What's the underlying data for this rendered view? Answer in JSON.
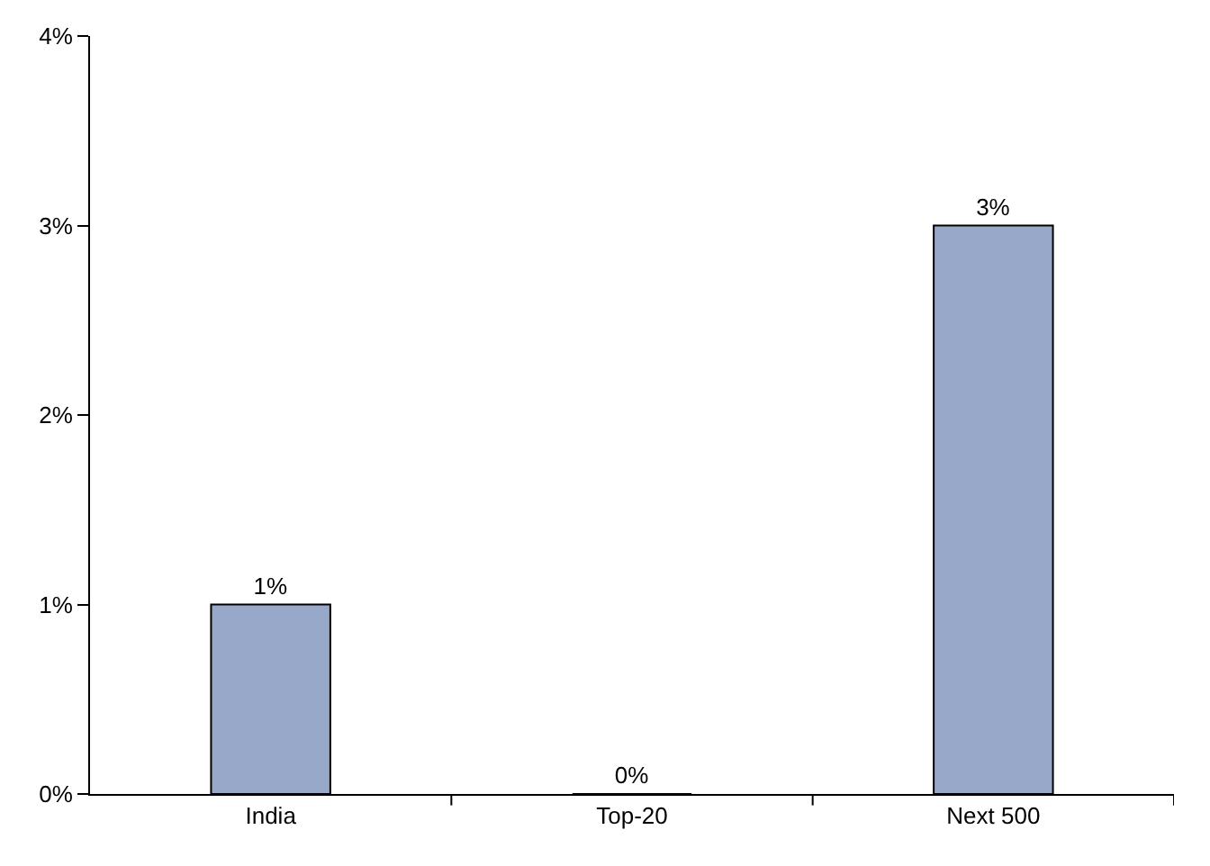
{
  "chart_data": {
    "type": "bar",
    "categories": [
      "India",
      "Top-20",
      "Next 500"
    ],
    "values": [
      1,
      0,
      3
    ],
    "value_labels": [
      "1%",
      "0%",
      "3%"
    ],
    "color": "#98a8c8",
    "ylim": [
      0,
      4
    ],
    "yticks": [
      {
        "value": 0,
        "label": "0%"
      },
      {
        "value": 1,
        "label": "1%"
      },
      {
        "value": 2,
        "label": "2%"
      },
      {
        "value": 3,
        "label": "3%"
      },
      {
        "value": 4,
        "label": "4%"
      }
    ],
    "legend": false
  }
}
